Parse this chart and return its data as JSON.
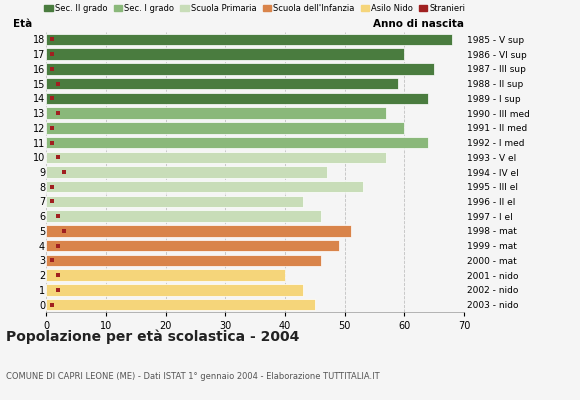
{
  "ages": [
    18,
    17,
    16,
    15,
    14,
    13,
    12,
    11,
    10,
    9,
    8,
    7,
    6,
    5,
    4,
    3,
    2,
    1,
    0
  ],
  "years": [
    "1985 - V sup",
    "1986 - VI sup",
    "1987 - III sup",
    "1988 - II sup",
    "1989 - I sup",
    "1990 - III med",
    "1991 - II med",
    "1992 - I med",
    "1993 - V el",
    "1994 - IV el",
    "1995 - III el",
    "1996 - II el",
    "1997 - I el",
    "1998 - mat",
    "1999 - mat",
    "2000 - mat",
    "2001 - nido",
    "2002 - nido",
    "2003 - nido"
  ],
  "values": [
    68,
    60,
    65,
    59,
    64,
    57,
    60,
    64,
    57,
    47,
    53,
    43,
    46,
    51,
    49,
    46,
    40,
    43,
    45
  ],
  "stranieri": [
    1,
    1,
    1,
    2,
    1,
    2,
    1,
    1,
    2,
    3,
    1,
    1,
    2,
    3,
    2,
    1,
    2,
    2,
    1
  ],
  "categories": {
    "sec2": [
      18,
      17,
      16,
      15,
      14
    ],
    "sec1": [
      13,
      12,
      11
    ],
    "primaria": [
      10,
      9,
      8,
      7,
      6
    ],
    "infanzia": [
      5,
      4,
      3
    ],
    "nido": [
      2,
      1,
      0
    ]
  },
  "colors": {
    "sec2": "#4a7c3f",
    "sec1": "#8ab87a",
    "primaria": "#c8ddb8",
    "infanzia": "#d9844a",
    "nido": "#f5d57a",
    "stranieri": "#a02020"
  },
  "legend_labels": [
    "Sec. II grado",
    "Sec. I grado",
    "Scuola Primaria",
    "Scuola dell'Infanzia",
    "Asilo Nido",
    "Stranieri"
  ],
  "title": "Popolazione per età scolastica - 2004",
  "subtitle": "COMUNE DI CAPRI LEONE (ME) - Dati ISTAT 1° gennaio 2004 - Elaborazione TUTTITALIA.IT",
  "xlim": [
    0,
    70
  ],
  "xticks": [
    0,
    10,
    20,
    30,
    40,
    50,
    60,
    70
  ],
  "bar_height": 0.78,
  "stranieri_size": 3.5,
  "background_color": "#f5f5f5",
  "grid_color": "#bbbbbb"
}
